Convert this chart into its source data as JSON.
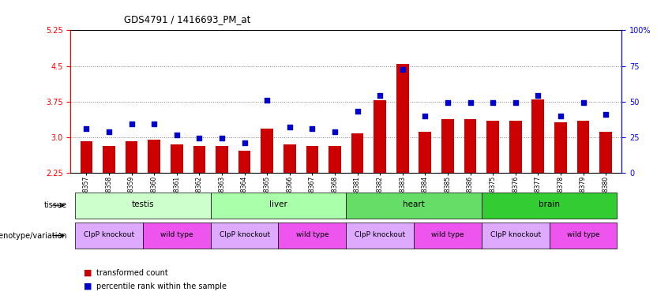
{
  "title": "GDS4791 / 1416693_PM_at",
  "samples": [
    "GSM988357",
    "GSM988358",
    "GSM988359",
    "GSM988360",
    "GSM988361",
    "GSM988362",
    "GSM988363",
    "GSM988364",
    "GSM988365",
    "GSM988366",
    "GSM988367",
    "GSM988368",
    "GSM988381",
    "GSM988382",
    "GSM988383",
    "GSM988384",
    "GSM988385",
    "GSM988386",
    "GSM988375",
    "GSM988376",
    "GSM988377",
    "GSM988378",
    "GSM988379",
    "GSM988380"
  ],
  "bar_values": [
    2.92,
    2.82,
    2.92,
    2.95,
    2.85,
    2.82,
    2.82,
    2.72,
    3.18,
    2.85,
    2.82,
    2.82,
    3.08,
    3.78,
    4.55,
    3.12,
    3.38,
    3.38,
    3.35,
    3.35,
    3.8,
    3.32,
    3.35,
    3.12
  ],
  "dot_values": [
    3.18,
    3.12,
    3.28,
    3.28,
    3.05,
    2.98,
    2.98,
    2.88,
    3.78,
    3.22,
    3.18,
    3.12,
    3.55,
    3.88,
    4.42,
    3.45,
    3.72,
    3.72,
    3.72,
    3.72,
    3.88,
    3.45,
    3.72,
    3.48
  ],
  "ylim": [
    2.25,
    5.25
  ],
  "yticks_left": [
    2.25,
    3.0,
    3.75,
    4.5,
    5.25
  ],
  "yticks_right_vals": [
    0,
    25,
    50,
    75,
    100
  ],
  "bar_color": "#cc0000",
  "dot_color": "#0000cc",
  "tissue_groups": [
    {
      "label": "testis",
      "start": 0,
      "end": 6,
      "color": "#ccffcc"
    },
    {
      "label": "liver",
      "start": 6,
      "end": 12,
      "color": "#aaffaa"
    },
    {
      "label": "heart",
      "start": 12,
      "end": 18,
      "color": "#66dd66"
    },
    {
      "label": "brain",
      "start": 18,
      "end": 24,
      "color": "#33cc33"
    }
  ],
  "genotype_groups": [
    {
      "label": "ClpP knockout",
      "start": 0,
      "end": 3,
      "color": "#ddaaff"
    },
    {
      "label": "wild type",
      "start": 3,
      "end": 6,
      "color": "#ee55ee"
    },
    {
      "label": "ClpP knockout",
      "start": 6,
      "end": 9,
      "color": "#ddaaff"
    },
    {
      "label": "wild type",
      "start": 9,
      "end": 12,
      "color": "#ee55ee"
    },
    {
      "label": "ClpP knockout",
      "start": 12,
      "end": 15,
      "color": "#ddaaff"
    },
    {
      "label": "wild type",
      "start": 15,
      "end": 18,
      "color": "#ee55ee"
    },
    {
      "label": "ClpP knockout",
      "start": 18,
      "end": 21,
      "color": "#ddaaff"
    },
    {
      "label": "wild type",
      "start": 21,
      "end": 24,
      "color": "#ee55ee"
    }
  ],
  "legend_bar_label": "transformed count",
  "legend_dot_label": "percentile rank within the sample"
}
